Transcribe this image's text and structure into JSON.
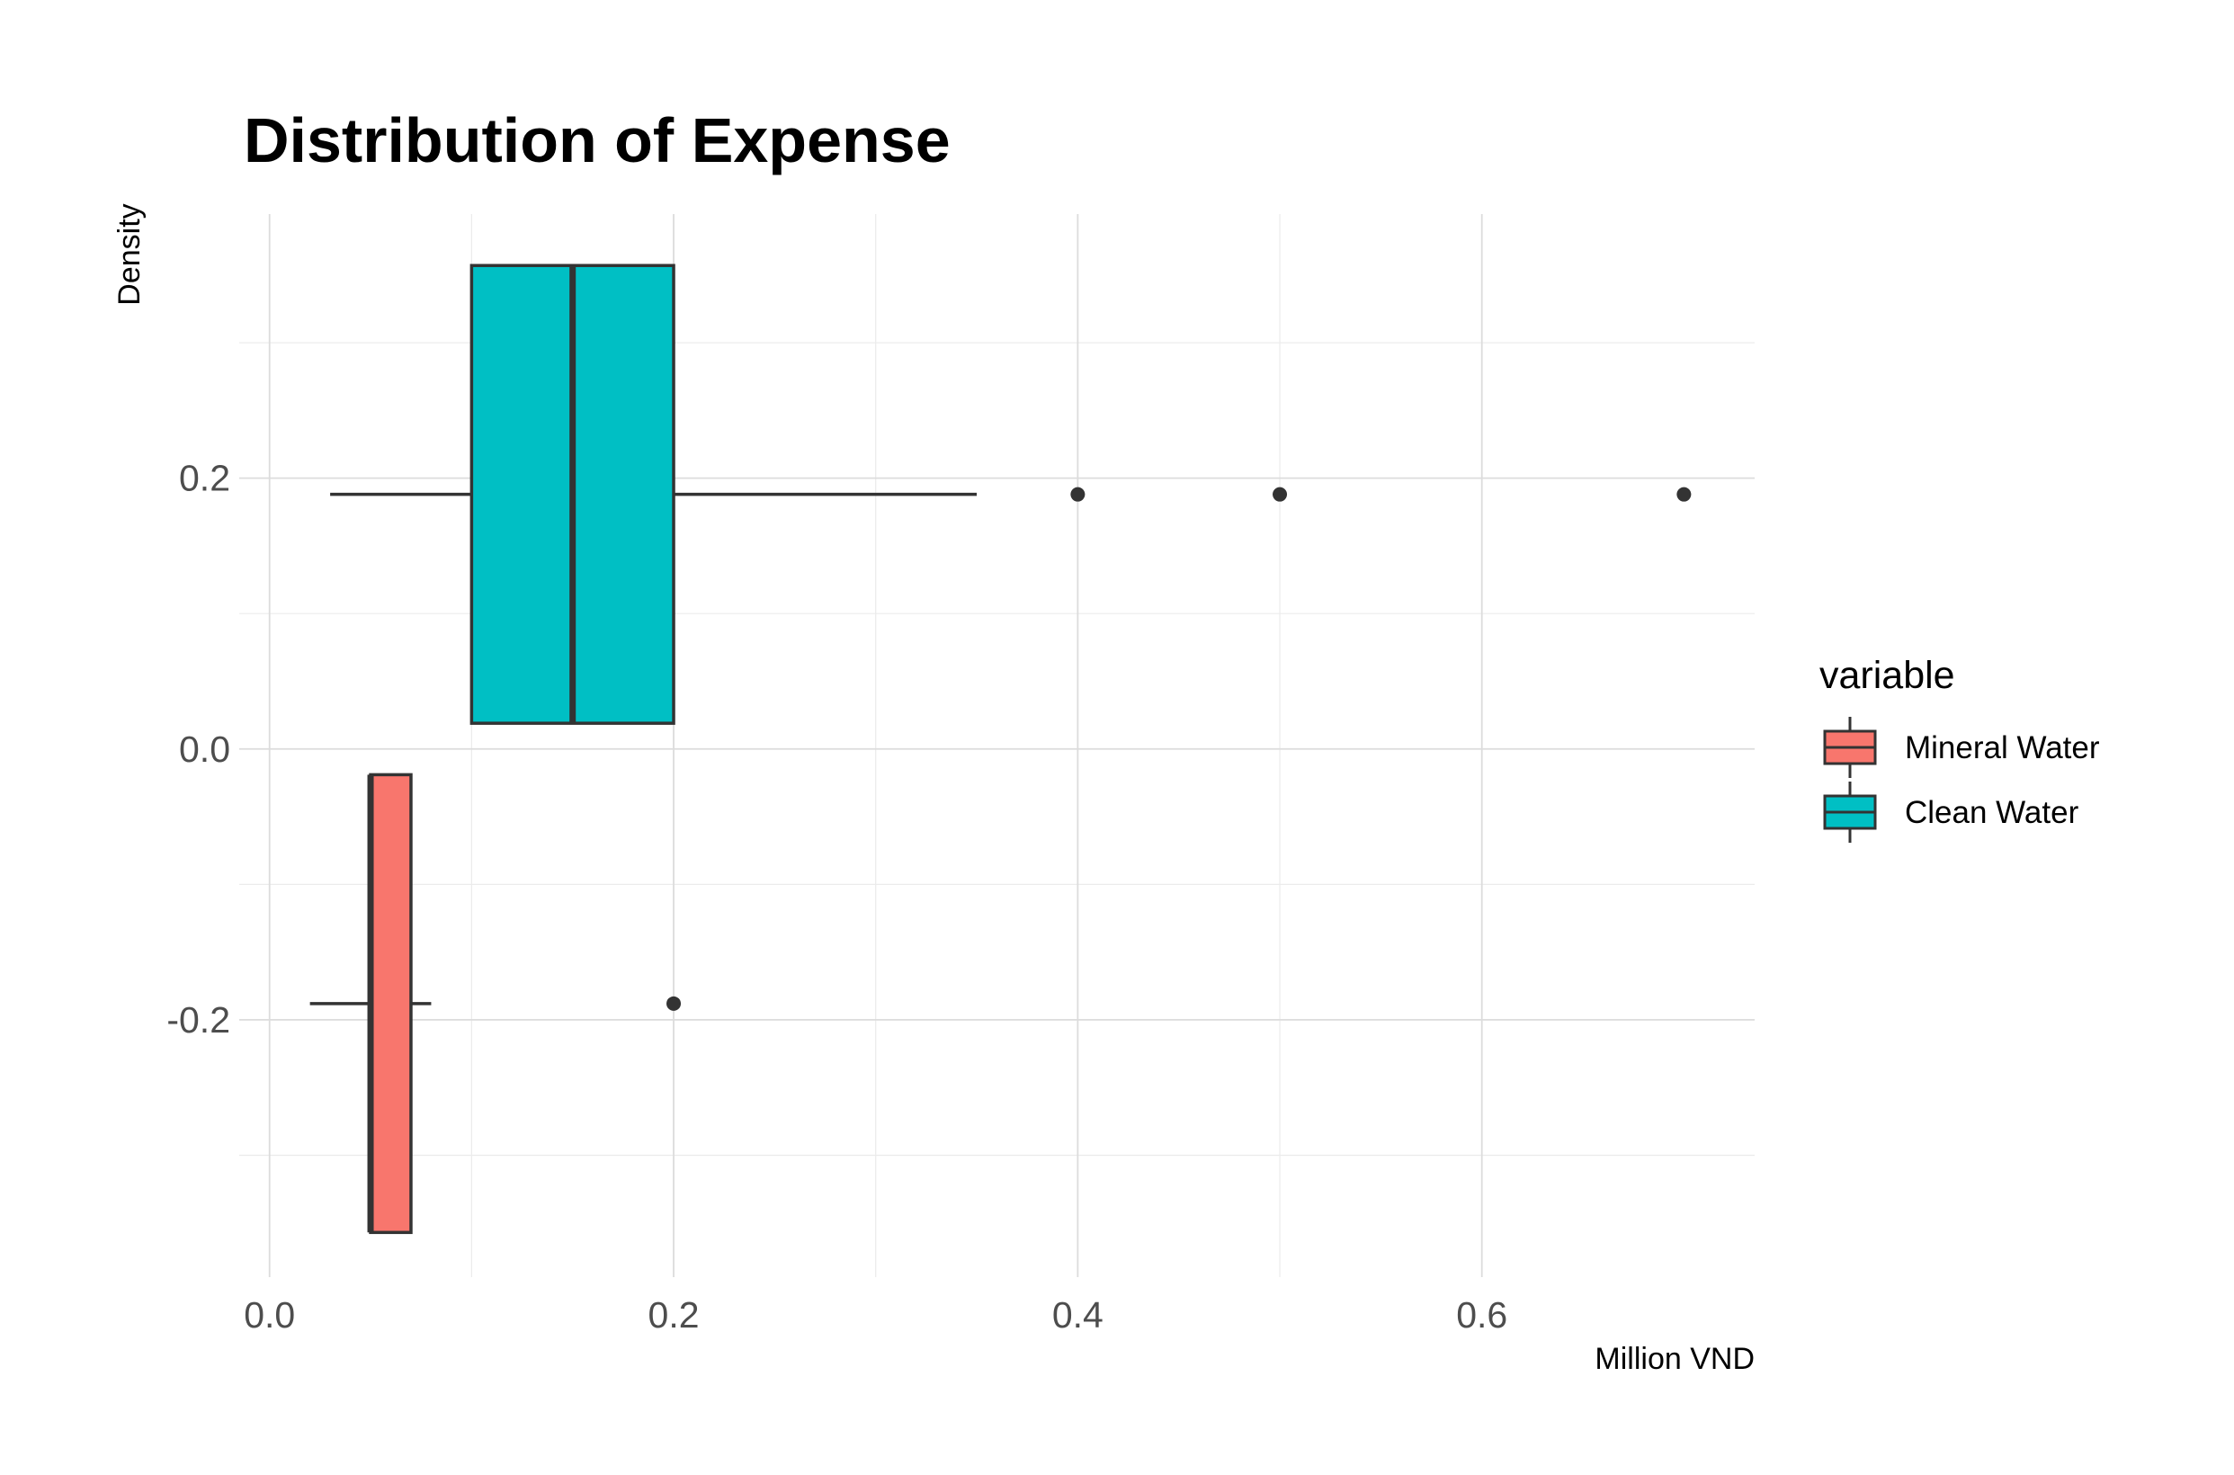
{
  "chart_data": {
    "type": "boxplot",
    "orientation": "horizontal",
    "title": "Distribution of Expense",
    "xlabel": "Million VND",
    "ylabel": "Density",
    "xlim": [
      -0.015,
      0.735
    ],
    "ylim": [
      -0.39,
      0.395
    ],
    "x_ticks": [
      0.0,
      0.2,
      0.4,
      0.6
    ],
    "x_tick_labels": [
      "0.0",
      "0.2",
      "0.4",
      "0.6"
    ],
    "y_ticks": [
      -0.2,
      0.0,
      0.2
    ],
    "y_tick_labels": [
      "-0.2",
      "0.0",
      "0.2"
    ],
    "grid": true,
    "legend": {
      "title": "variable",
      "position": "right",
      "entries": [
        "Mineral Water",
        "Clean Water"
      ]
    },
    "series": [
      {
        "name": "Mineral Water",
        "color": "#F8766D",
        "box_y_range": [
          -0.357,
          -0.019
        ],
        "y_center": -0.188,
        "whisker_low": 0.02,
        "q1": 0.05,
        "median": 0.05,
        "q3": 0.07,
        "whisker_high": 0.08,
        "outliers": [
          0.2
        ]
      },
      {
        "name": "Clean Water",
        "color": "#00BFC4",
        "box_y_range": [
          0.019,
          0.357
        ],
        "y_center": 0.188,
        "whisker_low": 0.03,
        "q1": 0.1,
        "median": 0.15,
        "q3": 0.2,
        "whisker_high": 0.35,
        "outliers": [
          0.4,
          0.5,
          0.7
        ]
      }
    ]
  }
}
